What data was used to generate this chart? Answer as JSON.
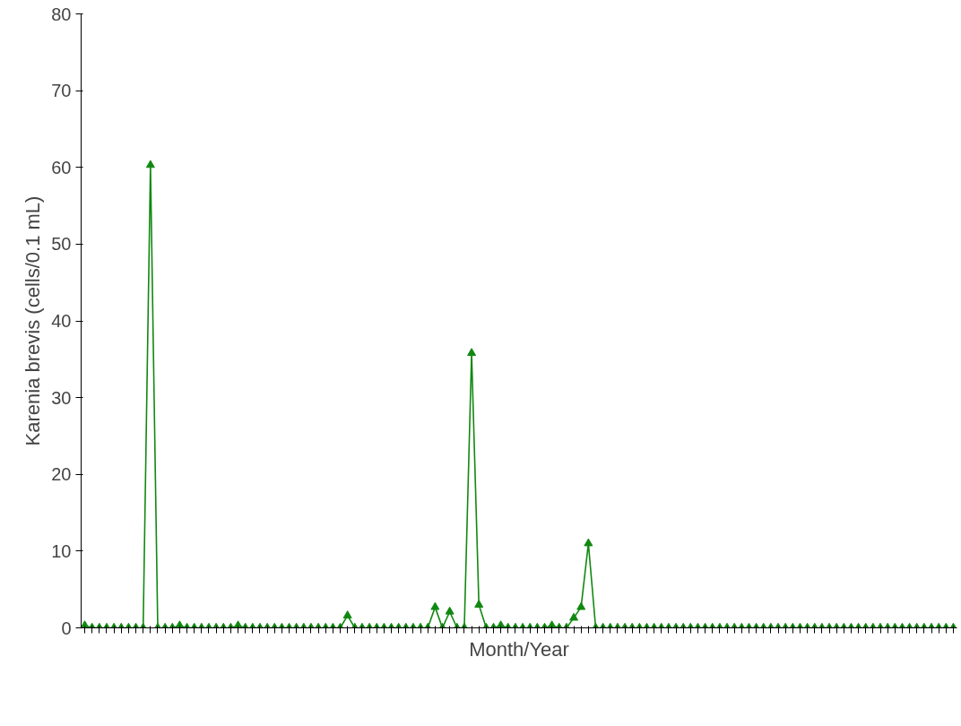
{
  "chart_data": {
    "type": "line",
    "xlabel": "Month/Year",
    "ylabel": "Karenia brevis (cells/0.1 mL)",
    "categories": [
      null,
      null,
      null,
      null,
      null,
      null,
      null,
      null,
      null,
      null,
      null,
      null,
      null,
      null,
      null,
      null,
      null,
      null,
      null,
      null,
      null,
      null,
      null,
      null,
      null,
      null,
      null,
      null,
      null,
      null,
      null,
      null,
      null,
      null,
      null,
      null,
      null,
      null,
      null,
      null,
      null,
      null,
      null,
      null,
      null,
      null,
      null,
      null,
      null,
      null,
      null,
      null,
      null,
      null,
      null,
      null,
      null,
      null,
      null,
      null,
      null,
      null,
      null,
      null,
      null,
      null,
      null,
      null,
      null,
      null,
      null,
      null,
      null,
      null,
      null,
      null,
      null,
      null,
      null,
      null,
      null,
      null,
      null,
      null,
      null,
      null,
      null,
      null,
      null,
      null,
      null,
      null,
      null,
      null,
      null,
      null,
      null,
      null,
      null,
      null,
      null,
      null,
      null,
      null,
      null,
      null,
      null,
      null,
      null,
      null,
      null,
      null,
      null,
      null,
      null,
      null,
      null,
      null,
      null,
      null
    ],
    "series": [
      {
        "color": "#118811",
        "values": [
          0.3,
          0,
          0,
          0,
          0,
          0,
          0,
          0,
          0,
          60.3,
          0,
          0,
          0,
          0.3,
          0,
          0,
          0,
          0,
          0,
          0,
          0,
          0.3,
          0,
          0,
          0,
          0,
          0,
          0,
          0,
          0,
          0,
          0,
          0,
          0,
          0,
          0,
          1.6,
          0,
          0,
          0,
          0,
          0,
          0,
          0,
          0,
          0,
          0,
          0,
          2.7,
          0,
          2.1,
          0,
          0,
          35.8,
          3.0,
          0,
          0,
          0.3,
          0,
          0,
          0,
          0,
          0,
          0,
          0.3,
          0,
          0,
          1.3,
          2.7,
          11.0,
          0,
          0,
          0,
          0,
          0,
          0,
          0,
          0,
          0,
          0,
          0,
          0,
          0,
          0,
          0,
          0,
          0,
          0,
          0,
          0,
          0,
          0,
          0,
          0,
          0,
          0,
          0,
          0,
          0,
          0,
          0,
          0,
          0,
          0,
          0,
          0,
          0,
          0,
          0,
          0,
          0,
          0,
          0,
          0,
          0,
          0,
          0,
          0,
          0,
          0
        ]
      }
    ],
    "ylim": [
      0,
      80
    ],
    "yticks": [
      0,
      10,
      20,
      30,
      40,
      50,
      60,
      70,
      80
    ],
    "marker": "triangle",
    "line_style": "solid"
  }
}
